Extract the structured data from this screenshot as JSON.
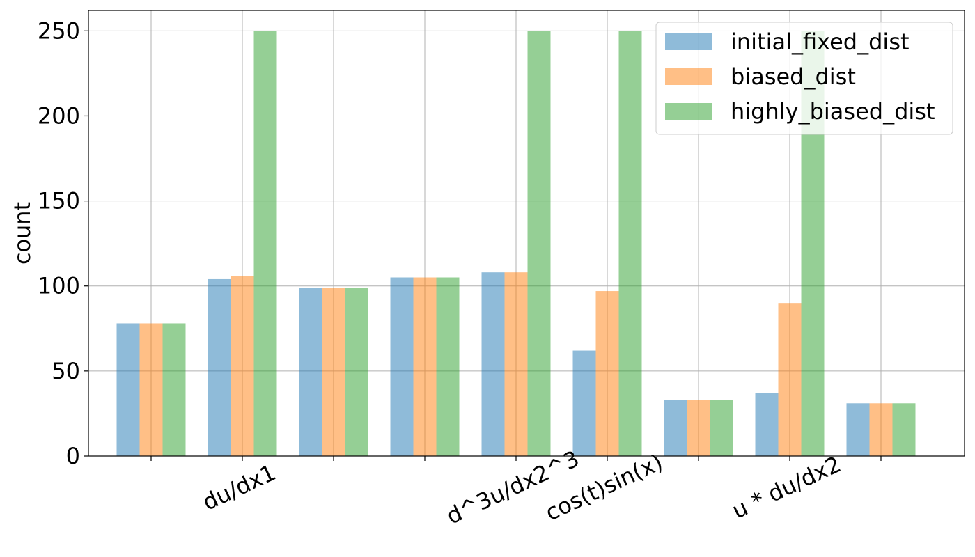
{
  "chart_data": {
    "type": "bar",
    "title": "",
    "xlabel": "",
    "ylabel": "count",
    "ylim": [
      0,
      262
    ],
    "yticks": [
      0,
      50,
      100,
      150,
      200,
      250
    ],
    "grid": true,
    "legend_position": "top-right",
    "x_tick_labels": [
      "",
      "du/dx1",
      "",
      "",
      "d^3u/dx2^3",
      "cos(t)sin(x)",
      "",
      "u * du/dx2",
      ""
    ],
    "x_tick_rotation_deg": -25,
    "series": [
      {
        "name": "initial_fixed_dist",
        "color": "#1f77b4",
        "alpha": 0.5,
        "values": [
          78,
          104,
          99,
          105,
          108,
          62,
          33,
          37,
          31
        ]
      },
      {
        "name": "biased_dist",
        "color": "#ff7f0e",
        "alpha": 0.5,
        "values": [
          78,
          106,
          99,
          105,
          108,
          97,
          33,
          90,
          31
        ]
      },
      {
        "name": "highly_biased_dist",
        "color": "#2ca02c",
        "alpha": 0.5,
        "values": [
          78,
          250,
          99,
          105,
          250,
          250,
          33,
          250,
          31
        ]
      }
    ]
  }
}
